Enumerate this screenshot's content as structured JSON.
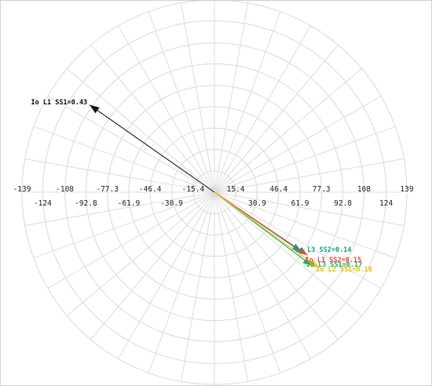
{
  "chart_data": {
    "type": "polar-phasor",
    "grid": true,
    "rlim": [
      0,
      139
    ],
    "radial_spokes_every_deg": 10,
    "ring_values": [
      15.4,
      30.9,
      46.4,
      61.9,
      77.3,
      92.8,
      108,
      124,
      139
    ],
    "tick_labels_top": [
      "-139",
      "-108",
      "-77.3",
      "-46.4",
      "-15.4",
      "15.4",
      "46.4",
      "77.3",
      "108",
      "139"
    ],
    "tick_labels_bottom": [
      "-124",
      "-92.8",
      "-61.9",
      "-30.9",
      "30.9",
      "61.9",
      "92.8",
      "124"
    ],
    "vectors": [
      {
        "label": "Io L1 SS1=0.43",
        "magnitude": 110,
        "angle_deg": 145,
        "color": "#111111",
        "label_color": "#111111"
      },
      {
        "label": "Io L3 SS2=0.14",
        "magnitude": 76.3,
        "angle_deg": -34.5,
        "color": "#16a085",
        "label_color": "#16a085"
      },
      {
        "label": "Io L1 SS2=0.15",
        "magnitude": 81.2,
        "angle_deg": -34.1,
        "color": "#e74c3c",
        "label_color": "#e74c3c"
      },
      {
        "label": "Io L3 SS1=0.17",
        "magnitude": 88.5,
        "angle_deg": -37.0,
        "color": "#27ae60",
        "label_color": "#27ae60"
      },
      {
        "label": "Io L2 SS1=0.18",
        "magnitude": 93.4,
        "angle_deg": -36.0,
        "color": "#f1c40f",
        "label_color": "#e6c200"
      }
    ]
  }
}
